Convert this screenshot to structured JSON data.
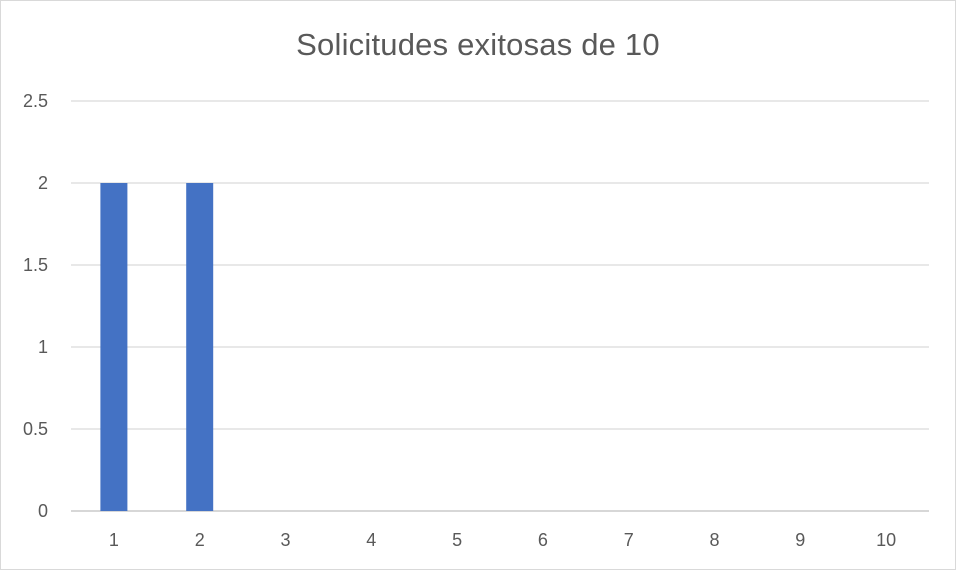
{
  "chart_data": {
    "type": "bar",
    "title": "Solicitudes exitosas de 10",
    "xlabel": "",
    "ylabel": "",
    "categories": [
      "1",
      "2",
      "3",
      "4",
      "5",
      "6",
      "7",
      "8",
      "9",
      "10"
    ],
    "values": [
      2,
      2,
      0,
      0,
      0,
      0,
      0,
      0,
      0,
      0
    ],
    "ylim": [
      0,
      2.5
    ],
    "yticks": [
      "0",
      "0.5",
      "1",
      "1.5",
      "2",
      "2.5"
    ],
    "grid": true,
    "legend": "none",
    "bar_color": "#4472c4",
    "grid_color": "#d9d9d9",
    "text_color": "#595959"
  }
}
